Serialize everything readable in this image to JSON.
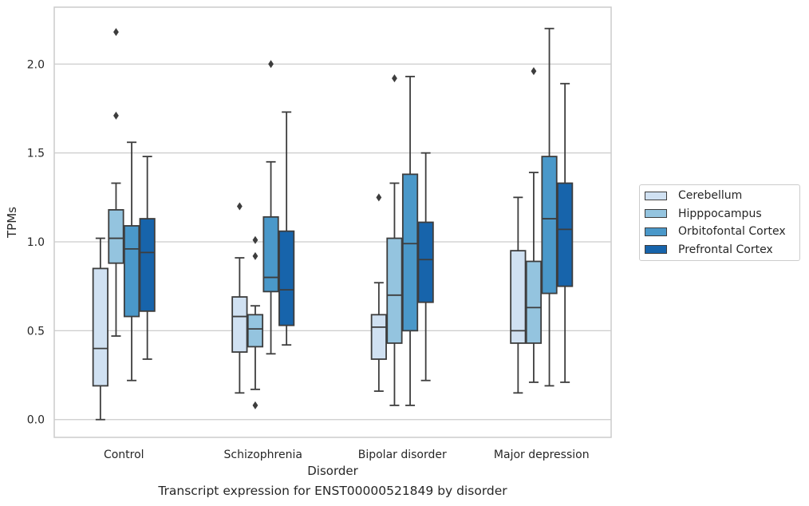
{
  "chart_data": {
    "type": "boxplot",
    "xlabel": "Disorder",
    "ylabel": "TPMs",
    "caption": "Transcript expression for ENST00000521849 by disorder",
    "categories": [
      "Control",
      "Schizophrenia",
      "Bipolar disorder",
      "Major depression"
    ],
    "ylim": [
      -0.1,
      2.32
    ],
    "yticks": [
      "0.0",
      "0.5",
      "1.0",
      "1.5",
      "2.0"
    ],
    "ytick_values": [
      0.0,
      0.5,
      1.0,
      1.5,
      2.0
    ],
    "grid": "horizontal",
    "legend_position": "right",
    "series": [
      {
        "name": "Cerebellum",
        "color": "#d0e1f2",
        "boxes": [
          {
            "whisker_low": 0.0,
            "q1": 0.19,
            "median": 0.4,
            "q3": 0.85,
            "whisker_high": 1.02,
            "outliers": []
          },
          {
            "whisker_low": 0.15,
            "q1": 0.38,
            "median": 0.58,
            "q3": 0.69,
            "whisker_high": 0.91,
            "outliers": [
              1.2
            ]
          },
          {
            "whisker_low": 0.16,
            "q1": 0.34,
            "median": 0.52,
            "q3": 0.59,
            "whisker_high": 0.77,
            "outliers": [
              1.25
            ]
          },
          {
            "whisker_low": 0.15,
            "q1": 0.43,
            "median": 0.5,
            "q3": 0.95,
            "whisker_high": 1.25,
            "outliers": []
          }
        ]
      },
      {
        "name": "Hipppocampus",
        "color": "#94c4df",
        "boxes": [
          {
            "whisker_low": 0.47,
            "q1": 0.88,
            "median": 1.02,
            "q3": 1.18,
            "whisker_high": 1.33,
            "outliers": [
              1.71,
              2.18
            ]
          },
          {
            "whisker_low": 0.17,
            "q1": 0.41,
            "median": 0.51,
            "q3": 0.59,
            "whisker_high": 0.64,
            "outliers": [
              0.08,
              0.92,
              1.01
            ]
          },
          {
            "whisker_low": 0.08,
            "q1": 0.43,
            "median": 0.7,
            "q3": 1.02,
            "whisker_high": 1.33,
            "outliers": [
              1.92
            ]
          },
          {
            "whisker_low": 0.21,
            "q1": 0.43,
            "median": 0.63,
            "q3": 0.89,
            "whisker_high": 1.39,
            "outliers": [
              1.96
            ]
          }
        ]
      },
      {
        "name": "Orbitofontal Cortex",
        "color": "#4a98c9",
        "boxes": [
          {
            "whisker_low": 0.22,
            "q1": 0.58,
            "median": 0.96,
            "q3": 1.09,
            "whisker_high": 1.56,
            "outliers": []
          },
          {
            "whisker_low": 0.37,
            "q1": 0.72,
            "median": 0.8,
            "q3": 1.14,
            "whisker_high": 1.45,
            "outliers": [
              2.0
            ]
          },
          {
            "whisker_low": 0.08,
            "q1": 0.5,
            "median": 0.99,
            "q3": 1.38,
            "whisker_high": 1.93,
            "outliers": []
          },
          {
            "whisker_low": 0.19,
            "q1": 0.71,
            "median": 1.13,
            "q3": 1.48,
            "whisker_high": 2.2,
            "outliers": []
          }
        ]
      },
      {
        "name": "Prefrontal Cortex",
        "color": "#1764ab",
        "boxes": [
          {
            "whisker_low": 0.34,
            "q1": 0.61,
            "median": 0.94,
            "q3": 1.13,
            "whisker_high": 1.48,
            "outliers": []
          },
          {
            "whisker_low": 0.42,
            "q1": 0.53,
            "median": 0.73,
            "q3": 1.06,
            "whisker_high": 1.73,
            "outliers": []
          },
          {
            "whisker_low": 0.22,
            "q1": 0.66,
            "median": 0.9,
            "q3": 1.11,
            "whisker_high": 1.5,
            "outliers": []
          },
          {
            "whisker_low": 0.21,
            "q1": 0.75,
            "median": 1.07,
            "q3": 1.33,
            "whisker_high": 1.89,
            "outliers": []
          }
        ]
      }
    ]
  }
}
